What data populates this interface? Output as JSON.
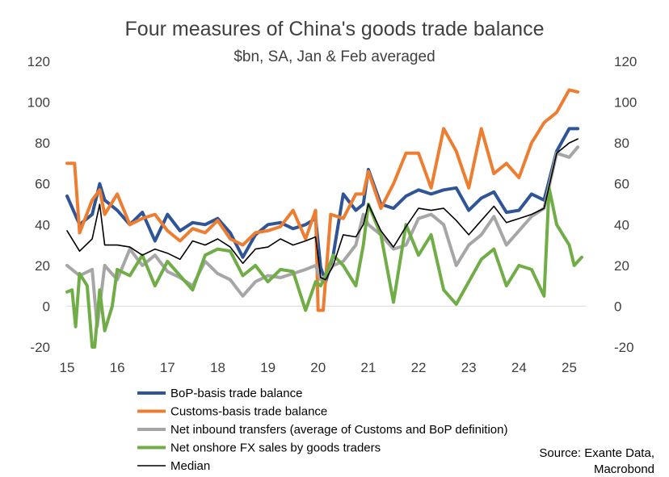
{
  "chart_data": {
    "type": "line",
    "title": "Four measures of China's goods trade balance",
    "subtitle": "$bn, SA, Jan & Feb averaged",
    "xlabel": "",
    "ylabel": "",
    "ylim": [
      -20,
      120
    ],
    "y_ticks": [
      -20,
      0,
      20,
      40,
      60,
      80,
      100,
      120
    ],
    "x_range": [
      2015.0,
      2025.33
    ],
    "x_tick_values": [
      2015,
      2016,
      2017,
      2018,
      2019,
      2020,
      2021,
      2022,
      2023,
      2024,
      2025
    ],
    "x_tick_labels": [
      "15",
      "16",
      "17",
      "18",
      "19",
      "20",
      "21",
      "22",
      "23",
      "24",
      "25"
    ],
    "legend_position": "bottom-left",
    "source": [
      "Source: Exante Data,",
      "Macrobond"
    ],
    "series": [
      {
        "name": "BoP-basis trade balance",
        "color": "#2f5597",
        "x": [
          2015.0,
          2015.25,
          2015.5,
          2015.65,
          2015.75,
          2016.0,
          2016.25,
          2016.5,
          2016.75,
          2017.0,
          2017.25,
          2017.5,
          2017.75,
          2018.0,
          2018.25,
          2018.5,
          2018.75,
          2019.0,
          2019.25,
          2019.5,
          2019.75,
          2019.95,
          2020.05,
          2020.15,
          2020.3,
          2020.5,
          2020.75,
          2020.9,
          2021.0,
          2021.25,
          2021.5,
          2021.75,
          2022.0,
          2022.25,
          2022.5,
          2022.75,
          2023.0,
          2023.25,
          2023.5,
          2023.75,
          2024.0,
          2024.25,
          2024.5,
          2024.75,
          2025.0,
          2025.17
        ],
        "values": [
          54,
          40,
          45,
          60,
          52,
          47,
          40,
          46,
          32,
          45,
          37,
          41,
          40,
          43,
          36,
          24,
          35,
          40,
          41,
          38,
          40,
          43,
          19,
          12,
          25,
          55,
          47,
          50,
          67,
          50,
          48,
          54,
          57,
          55,
          57,
          58,
          47,
          53,
          56,
          46,
          47,
          55,
          52,
          76,
          87,
          87
        ]
      },
      {
        "name": "Customs-basis trade balance",
        "color": "#ed7d31",
        "x": [
          2015.0,
          2015.15,
          2015.25,
          2015.5,
          2015.65,
          2015.75,
          2016.0,
          2016.25,
          2016.5,
          2016.75,
          2017.0,
          2017.25,
          2017.5,
          2017.75,
          2018.0,
          2018.25,
          2018.5,
          2018.75,
          2019.0,
          2019.25,
          2019.5,
          2019.75,
          2019.95,
          2020.0,
          2020.1,
          2020.25,
          2020.5,
          2020.75,
          2020.9,
          2021.0,
          2021.25,
          2021.5,
          2021.75,
          2022.0,
          2022.25,
          2022.5,
          2022.75,
          2023.0,
          2023.25,
          2023.5,
          2023.75,
          2024.0,
          2024.25,
          2024.5,
          2024.75,
          2025.0,
          2025.17
        ],
        "values": [
          70,
          70,
          36,
          52,
          57,
          45,
          55,
          40,
          43,
          45,
          37,
          32,
          38,
          36,
          42,
          33,
          30,
          36,
          37,
          39,
          47,
          33,
          47,
          -2,
          -2,
          45,
          43,
          55,
          55,
          66,
          48,
          60,
          75,
          75,
          58,
          87,
          76,
          58,
          87,
          65,
          70,
          63,
          80,
          90,
          95,
          106,
          105
        ]
      },
      {
        "name": "Net inbound transfers (average of Customs and BoP definition)",
        "color": "#a6a6a6",
        "x": [
          2015.0,
          2015.25,
          2015.5,
          2015.6,
          2015.75,
          2016.0,
          2016.25,
          2016.5,
          2016.75,
          2017.0,
          2017.25,
          2017.5,
          2017.75,
          2018.0,
          2018.25,
          2018.5,
          2018.75,
          2019.0,
          2019.25,
          2019.5,
          2019.75,
          2019.95,
          2020.05,
          2020.15,
          2020.3,
          2020.5,
          2020.75,
          2020.9,
          2021.0,
          2021.25,
          2021.5,
          2021.75,
          2022.0,
          2022.25,
          2022.5,
          2022.75,
          2023.0,
          2023.25,
          2023.5,
          2023.75,
          2024.0,
          2024.25,
          2024.5,
          2024.75,
          2025.0,
          2025.17
        ],
        "values": [
          20,
          15,
          18,
          -10,
          20,
          13,
          28,
          20,
          25,
          17,
          14,
          10,
          22,
          16,
          13,
          5,
          12,
          15,
          14,
          16,
          18,
          20,
          13,
          15,
          20,
          22,
          30,
          45,
          40,
          35,
          28,
          30,
          43,
          45,
          40,
          20,
          30,
          35,
          44,
          30,
          37,
          44,
          48,
          75,
          73,
          78
        ]
      },
      {
        "name": "Net onshore FX sales by goods traders",
        "color": "#70ad47",
        "x": [
          2015.0,
          2015.1,
          2015.17,
          2015.25,
          2015.4,
          2015.5,
          2015.55,
          2015.65,
          2015.75,
          2015.9,
          2016.0,
          2016.25,
          2016.5,
          2016.75,
          2017.0,
          2017.25,
          2017.5,
          2017.75,
          2018.0,
          2018.25,
          2018.5,
          2018.75,
          2019.0,
          2019.25,
          2019.5,
          2019.75,
          2019.95,
          2020.05,
          2020.15,
          2020.3,
          2020.5,
          2020.75,
          2020.9,
          2021.0,
          2021.25,
          2021.5,
          2021.75,
          2022.0,
          2022.25,
          2022.5,
          2022.75,
          2023.0,
          2023.25,
          2023.5,
          2023.75,
          2024.0,
          2024.25,
          2024.5,
          2024.6,
          2024.75,
          2025.0,
          2025.1,
          2025.25
        ],
        "values": [
          7,
          8,
          -10,
          16,
          10,
          -20,
          -20,
          8,
          -12,
          0,
          18,
          15,
          25,
          10,
          22,
          15,
          8,
          25,
          28,
          27,
          15,
          20,
          12,
          18,
          17,
          -2,
          12,
          10,
          15,
          25,
          20,
          10,
          30,
          50,
          35,
          2,
          40,
          25,
          35,
          8,
          1,
          12,
          23,
          28,
          10,
          20,
          18,
          5,
          58,
          40,
          30,
          20,
          24
        ]
      },
      {
        "name": "Median",
        "color": "#000000",
        "x": [
          2015.0,
          2015.25,
          2015.5,
          2015.65,
          2015.75,
          2016.0,
          2016.25,
          2016.5,
          2016.75,
          2017.0,
          2017.25,
          2017.5,
          2017.75,
          2018.0,
          2018.25,
          2018.5,
          2018.75,
          2019.0,
          2019.25,
          2019.5,
          2019.75,
          2019.95,
          2020.05,
          2020.15,
          2020.3,
          2020.5,
          2020.75,
          2020.9,
          2021.0,
          2021.25,
          2021.5,
          2021.75,
          2022.0,
          2022.25,
          2022.5,
          2022.75,
          2023.0,
          2023.25,
          2023.5,
          2023.75,
          2024.0,
          2024.25,
          2024.5,
          2024.75,
          2025.0,
          2025.17
        ],
        "values": [
          37,
          27,
          33,
          50,
          30,
          30,
          29,
          25,
          28,
          26,
          23,
          32,
          30,
          33,
          29,
          21,
          28,
          29,
          33,
          30,
          32,
          34,
          14,
          13,
          20,
          35,
          34,
          40,
          50,
          37,
          29,
          39,
          48,
          47,
          48,
          42,
          35,
          42,
          49,
          41,
          43,
          45,
          48,
          75,
          80,
          82
        ]
      }
    ]
  }
}
